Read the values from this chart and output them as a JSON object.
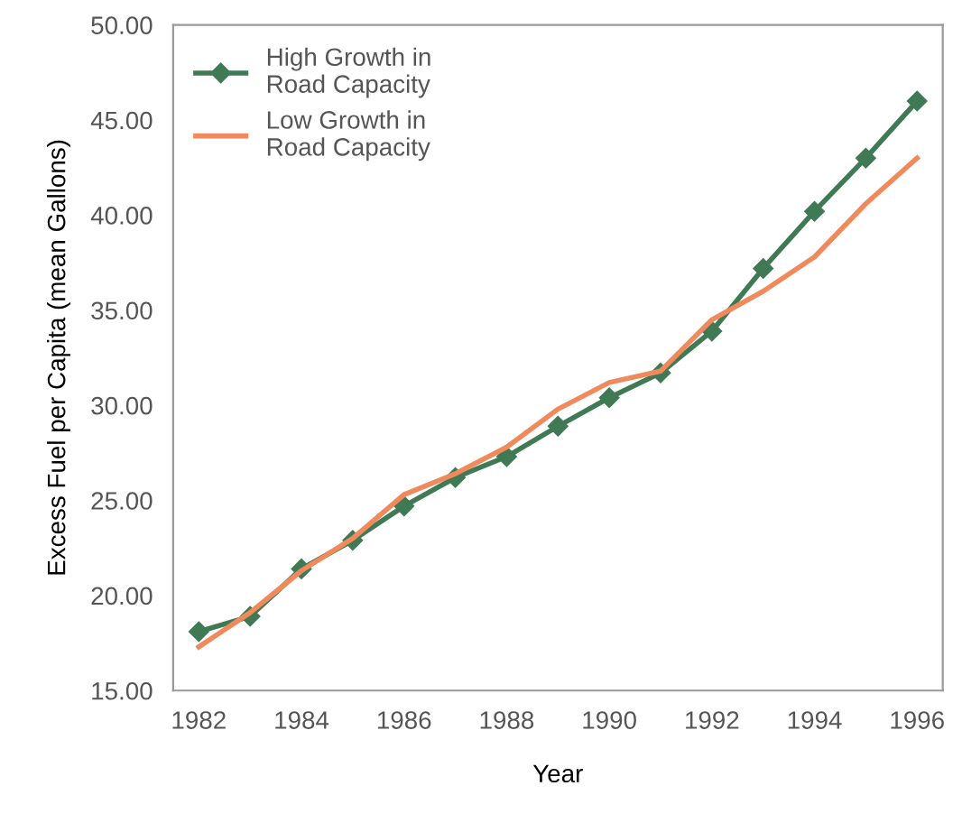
{
  "chart_data": {
    "type": "line",
    "xlabel": "Year",
    "ylabel": "Excess Fuel per Capita (mean Gallons)",
    "x": [
      1982,
      1983,
      1984,
      1985,
      1986,
      1987,
      1988,
      1989,
      1990,
      1991,
      1992,
      1993,
      1994,
      1995,
      1996
    ],
    "series": [
      {
        "name": "High Growth in\nRoad Capacity",
        "color": "#3f7a55",
        "marker": "diamond",
        "values": [
          18.1,
          18.9,
          21.4,
          22.9,
          24.7,
          26.2,
          27.3,
          28.9,
          30.4,
          31.7,
          33.9,
          37.2,
          40.2,
          43.0,
          46.0
        ]
      },
      {
        "name": "Low Growth in\nRoad Capacity",
        "color": "#f08a5d",
        "marker": "none",
        "values": [
          17.3,
          19.1,
          21.3,
          23.0,
          25.3,
          26.4,
          27.8,
          29.8,
          31.2,
          31.8,
          34.5,
          36.0,
          37.8,
          40.6,
          43.0
        ]
      }
    ],
    "xlim": [
      1981.5,
      1996.5
    ],
    "xticks": [
      1982,
      1984,
      1986,
      1988,
      1990,
      1992,
      1994,
      1996
    ],
    "ylim": [
      15,
      50
    ],
    "yticks": [
      {
        "value": 15,
        "label": "15.00"
      },
      {
        "value": 20,
        "label": "20.00"
      },
      {
        "value": 25,
        "label": "25.00"
      },
      {
        "value": 30,
        "label": "30.00"
      },
      {
        "value": 35,
        "label": "35.00"
      },
      {
        "value": 40,
        "label": "40.00"
      },
      {
        "value": 45,
        "label": "45.00"
      },
      {
        "value": 50,
        "label": "50.00"
      }
    ],
    "grid": false,
    "legend": "top left",
    "line_style": "solid"
  }
}
